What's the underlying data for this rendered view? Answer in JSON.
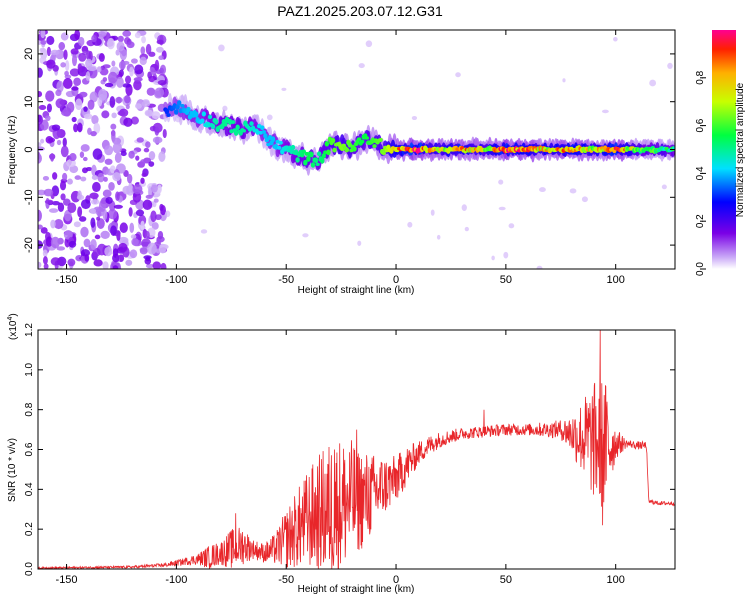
{
  "title": "PAZ1.2025.203.07.12.G31",
  "chart_data": [
    {
      "type": "heatmap",
      "xlabel": "Height of straight line (km)",
      "ylabel": "Frequency (Hz)",
      "xlim": [
        -163,
        127
      ],
      "ylim": [
        -25,
        25
      ],
      "xticks": [
        -150,
        -100,
        -50,
        0,
        50,
        100
      ],
      "yticks": [
        -20,
        -10,
        0,
        10,
        20
      ],
      "colorbar": {
        "label": "Normalized spectral amplitude",
        "range": [
          0,
          1
        ],
        "ticks": [
          "0.0",
          "0.2",
          "0.4",
          "0.6",
          "0.8"
        ],
        "colormap": "rainbow"
      },
      "ridge": {
        "x": [
          -105,
          -100,
          -95,
          -90,
          -85,
          -80,
          -75,
          -70,
          -65,
          -60,
          -55,
          -50,
          -45,
          -40,
          -35,
          -30,
          -25,
          -20,
          -15,
          -10,
          -5,
          0,
          10,
          20,
          30,
          40,
          50,
          60,
          70,
          80,
          90,
          100,
          110,
          120,
          127
        ],
        "freq": [
          8,
          9,
          8,
          7,
          6,
          5,
          5,
          4,
          5,
          3,
          1,
          0,
          -1,
          -2,
          -2,
          1,
          1,
          0,
          2,
          2,
          0,
          0,
          0,
          0,
          0,
          0,
          0,
          0,
          0,
          0,
          0,
          0,
          0,
          0,
          0
        ],
        "amplitude": [
          0.3,
          0.35,
          0.4,
          0.4,
          0.45,
          0.5,
          0.5,
          0.5,
          0.45,
          0.4,
          0.4,
          0.45,
          0.5,
          0.55,
          0.5,
          0.6,
          0.65,
          0.6,
          0.55,
          0.6,
          0.65,
          0.8,
          0.95,
          0.7,
          0.85,
          0.7,
          0.9,
          0.85,
          0.75,
          0.85,
          0.7,
          0.9,
          0.6,
          0.55,
          0.5
        ]
      },
      "noise_region": {
        "x_range": [
          -163,
          -105
        ],
        "freq_range": [
          -25,
          25
        ],
        "amplitude": 0.1
      }
    },
    {
      "type": "line",
      "xlabel": "Height of straight line (km)",
      "ylabel": "SNR (10 * v/v)",
      "y_scale_label": "(x10",
      "y_scale_exp": "4",
      "y_scale_close": ")",
      "xlim": [
        -163,
        127
      ],
      "ylim": [
        0,
        1.2
      ],
      "xticks": [
        -150,
        -100,
        -50,
        0,
        50,
        100
      ],
      "yticks": [
        "0.0",
        "0.2",
        "0.4",
        "0.6",
        "0.8",
        "1.0",
        "1.2"
      ],
      "series": [
        {
          "color": "#e8262a",
          "envelope": {
            "x": [
              -163,
              -140,
              -120,
              -105,
              -100,
              -95,
              -90,
              -85,
              -80,
              -75,
              -70,
              -65,
              -60,
              -55,
              -50,
              -45,
              -40,
              -35,
              -30,
              -25,
              -20,
              -15,
              -10,
              -5,
              0,
              5,
              10,
              15,
              20,
              30,
              40,
              50,
              60,
              70,
              75,
              80,
              85,
              90,
              95,
              100,
              105,
              110,
              114,
              115,
              120,
              127
            ],
            "mean": [
              0.005,
              0.008,
              0.01,
              0.02,
              0.03,
              0.04,
              0.05,
              0.06,
              0.08,
              0.1,
              0.12,
              0.1,
              0.08,
              0.1,
              0.15,
              0.2,
              0.25,
              0.28,
              0.3,
              0.32,
              0.35,
              0.35,
              0.38,
              0.42,
              0.45,
              0.52,
              0.58,
              0.62,
              0.65,
              0.68,
              0.69,
              0.7,
              0.7,
              0.7,
              0.7,
              0.68,
              0.66,
              0.64,
              0.62,
              0.63,
              0.63,
              0.62,
              0.62,
              0.34,
              0.33,
              0.33
            ],
            "amp": [
              0.004,
              0.005,
              0.006,
              0.01,
              0.015,
              0.02,
              0.03,
              0.06,
              0.06,
              0.1,
              0.1,
              0.05,
              0.05,
              0.08,
              0.15,
              0.2,
              0.25,
              0.3,
              0.35,
              0.35,
              0.3,
              0.25,
              0.2,
              0.15,
              0.12,
              0.1,
              0.06,
              0.05,
              0.04,
              0.03,
              0.03,
              0.03,
              0.03,
              0.04,
              0.05,
              0.1,
              0.2,
              0.3,
              0.35,
              0.08,
              0.02,
              0.02,
              0.02,
              0.01,
              0.01,
              0.01
            ]
          },
          "peaks": [
            [
              -73,
              0.28
            ],
            [
              -28,
              0.6
            ],
            [
              -18,
              0.7
            ],
            [
              -35,
              0.48
            ],
            [
              40,
              0.8
            ],
            [
              93,
              1.2
            ],
            [
              94,
              0.22
            ]
          ]
        }
      ]
    }
  ]
}
